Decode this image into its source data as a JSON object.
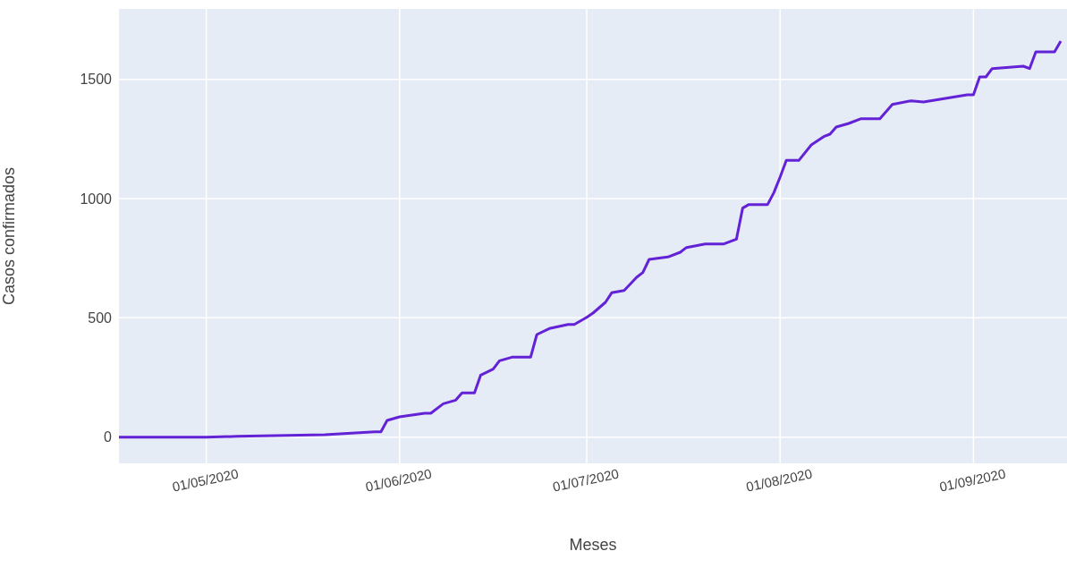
{
  "chart_data": {
    "type": "line",
    "xlabel": "Meses",
    "ylabel": "Casos confirmados",
    "x": [
      "2020-04-17",
      "2020-05-01",
      "2020-05-06",
      "2020-05-20",
      "2020-05-28",
      "2020-05-29",
      "2020-05-30",
      "2020-06-01",
      "2020-06-05",
      "2020-06-06",
      "2020-06-08",
      "2020-06-10",
      "2020-06-11",
      "2020-06-13",
      "2020-06-14",
      "2020-06-16",
      "2020-06-17",
      "2020-06-19",
      "2020-06-22",
      "2020-06-23",
      "2020-06-25",
      "2020-06-28",
      "2020-06-29",
      "2020-07-01",
      "2020-07-02",
      "2020-07-04",
      "2020-07-05",
      "2020-07-07",
      "2020-07-09",
      "2020-07-10",
      "2020-07-11",
      "2020-07-14",
      "2020-07-16",
      "2020-07-17",
      "2020-07-20",
      "2020-07-23",
      "2020-07-25",
      "2020-07-26",
      "2020-07-27",
      "2020-07-30",
      "2020-07-31",
      "2020-08-01",
      "2020-08-02",
      "2020-08-04",
      "2020-08-06",
      "2020-08-08",
      "2020-08-09",
      "2020-08-10",
      "2020-08-12",
      "2020-08-14",
      "2020-08-17",
      "2020-08-19",
      "2020-08-22",
      "2020-08-24",
      "2020-08-31",
      "2020-09-01",
      "2020-09-02",
      "2020-09-03",
      "2020-09-04",
      "2020-09-09",
      "2020-09-10",
      "2020-09-11",
      "2020-09-14",
      "2020-09-15"
    ],
    "series": [
      {
        "color": "#6322d6",
        "values": [
          0,
          0,
          3,
          10,
          22,
          22,
          70,
          85,
          100,
          100,
          140,
          155,
          185,
          185,
          260,
          285,
          320,
          335,
          335,
          430,
          455,
          472,
          472,
          502,
          520,
          565,
          605,
          615,
          670,
          690,
          745,
          755,
          775,
          795,
          810,
          810,
          830,
          960,
          975,
          975,
          1025,
          1090,
          1160,
          1160,
          1225,
          1260,
          1270,
          1300,
          1315,
          1335,
          1335,
          1395,
          1410,
          1405,
          1435,
          1435,
          1510,
          1510,
          1545,
          1555,
          1545,
          1615,
          1615,
          1660
        ]
      }
    ],
    "xlim": [
      "2020-04-17",
      "2020-09-16"
    ],
    "ylim": [
      -110,
      1795
    ],
    "xticks": [
      {
        "value": "2020-05-01",
        "label": "01/05/2020"
      },
      {
        "value": "2020-06-01",
        "label": "01/06/2020"
      },
      {
        "value": "2020-07-01",
        "label": "01/07/2020"
      },
      {
        "value": "2020-08-01",
        "label": "01/08/2020"
      },
      {
        "value": "2020-09-01",
        "label": "01/09/2020"
      }
    ],
    "yticks": [
      0,
      500,
      1000,
      1500
    ],
    "grid": true,
    "legend": false,
    "marker": "none",
    "line_style": "solid"
  }
}
